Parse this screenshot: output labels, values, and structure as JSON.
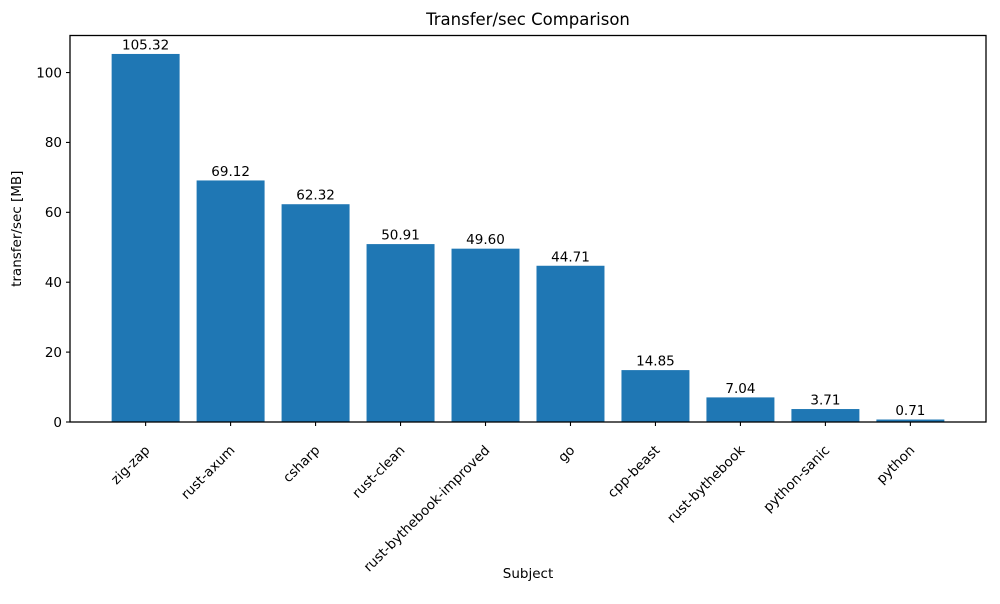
{
  "chart_data": {
    "type": "bar",
    "title": "Transfer/sec Comparison",
    "xlabel": "Subject",
    "ylabel": "transfer/sec [MB]",
    "categories": [
      "zig-zap",
      "rust-axum",
      "csharp",
      "rust-clean",
      "rust-bythebook-improved",
      "go",
      "cpp-beast",
      "rust-bythebook",
      "python-sanic",
      "python"
    ],
    "values": [
      105.32,
      69.12,
      62.32,
      50.91,
      49.6,
      44.71,
      14.85,
      7.04,
      3.71,
      0.71
    ],
    "value_labels": [
      "105.32",
      "69.12",
      "62.32",
      "50.91",
      "49.60",
      "44.71",
      "14.85",
      "7.04",
      "3.71",
      "0.71"
    ],
    "yticks": [
      0,
      20,
      40,
      60,
      80,
      100
    ],
    "ylim": [
      0,
      110.6
    ],
    "x_tick_rotation_deg": 45,
    "grid": false,
    "legend": null,
    "bar_color": "#1f77b4",
    "axis_color": "#000000",
    "background_color": "#ffffff"
  }
}
